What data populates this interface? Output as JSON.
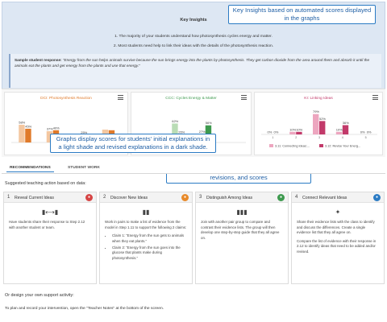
{
  "insights": {
    "title": "Key Insights",
    "items": [
      "1. The majority of your students understand how photosynthesis cycles energy and matter.",
      "2. Most students need help to link their ideas with the details of the photosynthesis reaction."
    ],
    "sample_label": "Sample student response:",
    "sample_text": "“Energy from the sun helps animals survive because the sun brings energy into the plants by photosynthesis. They get carbon dioxide from the area around them and absorb it until the animals eat the plants and get energy from the plants and use that energy.”"
  },
  "callouts": {
    "insights": "Key Insights based on automated scores displayed in the graphs",
    "graphs": "Graphs display scores for students' initial explanations in a light shade and revised explanations in a dark shade.",
    "tab": "Selecting this tab shows individual student work, revisions, and scores"
  },
  "chart_data": [
    {
      "type": "bar",
      "title": "DCI: Photosynthesis Reaction",
      "categories": [
        "1",
        "2",
        "3",
        "4"
      ],
      "series": [
        {
          "color": "#f4c7a0",
          "values": [
            58,
            37,
            3,
            42
          ]
        },
        {
          "color": "#e07a2a",
          "values": [
            45,
            40,
            25,
            40
          ]
        }
      ],
      "data_labels": [
        {
          "category": "1",
          "light": "58%",
          "dark": "45%"
        },
        {
          "category": "2",
          "light": "37%",
          "dark": "40%"
        },
        {
          "category": "3",
          "light": "3%",
          "dark": "25%"
        }
      ],
      "ylim": [
        0,
        100
      ]
    },
    {
      "type": "bar",
      "title": "CCC: Cycles Energy & Matter",
      "categories": [
        "1",
        "2",
        "3",
        "4"
      ],
      "series": [
        {
          "color": "#b9dcb5",
          "values": [
            10,
            62,
            27,
            0
          ]
        },
        {
          "color": "#3e9a4f",
          "values": [
            6,
            26,
            56,
            0
          ]
        }
      ],
      "data_labels": [
        {
          "category": "1",
          "light": "10%",
          "dark": "6%"
        },
        {
          "category": "2",
          "light": "62%",
          "dark": "26%"
        },
        {
          "category": "3",
          "light": "27%",
          "dark": "56%"
        }
      ],
      "ylim": [
        0,
        100
      ]
    },
    {
      "type": "bar",
      "title": "KI: Linking Ideas",
      "categories": [
        "1",
        "2",
        "3",
        "4",
        "5"
      ],
      "series": [
        {
          "name": "3.11: Connecting Ideas:...",
          "color": "#eda6bf",
          "values": [
            0,
            10,
            79,
            10,
            0
          ]
        },
        {
          "name": "3.12: Revise Your Energ...",
          "color": "#c23a6a",
          "values": [
            0,
            10,
            52,
            36,
            0
          ]
        }
      ],
      "data_labels": [
        {
          "category": "1",
          "light": "0%",
          "dark": "0%"
        },
        {
          "category": "2",
          "light": "10%",
          "dark": "10%"
        },
        {
          "category": "3",
          "light": "79%",
          "dark": "52%"
        },
        {
          "category": "4",
          "light": "10%",
          "dark": "36%"
        },
        {
          "category": "5",
          "light": "0%",
          "dark": "0%"
        }
      ],
      "legend": "bottom",
      "ylim": [
        0,
        100
      ]
    }
  ],
  "tabs": [
    {
      "label": "RECOMMENDATIONS",
      "active": true
    },
    {
      "label": "STUDENT WORK",
      "active": false
    }
  ],
  "suggested_label": "Suggested teaching action based on data:",
  "activities": [
    {
      "number": "1",
      "title": "Reveal Current Ideas",
      "icon": "speech-icon",
      "badge_color": "#d64545",
      "symbol": "▮⟷▮",
      "paragraphs": [
        "Have students share their response to Step 2.12 with another student or team."
      ],
      "bullets": []
    },
    {
      "number": "2",
      "title": "Discover New Ideas",
      "icon": "compass-icon",
      "badge_color": "#e88a2a",
      "symbol": "▮▮",
      "paragraphs": [
        "Work in pairs to make a list of evidence from the model in Step 1.11 to support the following 2 claims:"
      ],
      "bullets": [
        "Claim 1: “Energy from the sun gets to animals when they eat plants.”",
        "Claim 2: “Energy from the sun goes into the glucose that plants make during photosynthesis.”"
      ]
    },
    {
      "number": "3",
      "title": "Distinguish Among Ideas",
      "icon": "scale-icon",
      "badge_color": "#3e9a4f",
      "symbol": "▮▮▮",
      "paragraphs": [
        "Join with another pair group to compare and contrast their evidence lists. The group will then develop one step-by-step guide that they all agree on."
      ],
      "bullets": []
    },
    {
      "number": "4",
      "title": "Connect Relevant Ideas",
      "icon": "network-icon",
      "badge_color": "#2b7bc4",
      "symbol": "✦",
      "paragraphs": [
        "Share their evidence lists with the class to identify and discuss the differences. Create a single evidence list that they all agree on.",
        "Compare the list of evidence with their response in 2.12 to identify ideas that need to be added and/or revised."
      ],
      "bullets": []
    }
  ],
  "own_activity_label": "Or design your own support activity:",
  "footer_text": "To plan and record your intervention, open the \"Teacher Notes\" at the bottom of the screen."
}
